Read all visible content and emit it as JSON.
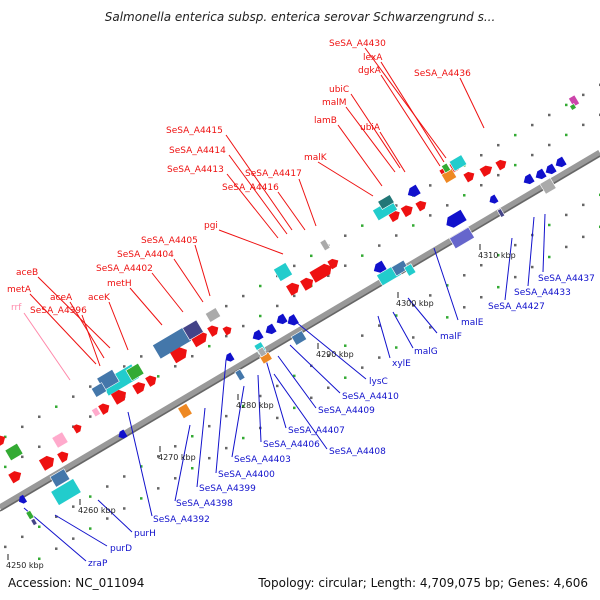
{
  "title": "Salmonella enterica subsp. enterica serovar Schwarzengrund s...",
  "footer": {
    "accession": "Accession: NC_011094",
    "stats": "Topology: circular; Length: 4,709,075 bp; Genes: 4,606"
  },
  "colors": {
    "forward": "#ee1111",
    "reverse": "#1111cc",
    "backbone": "#999999",
    "cyan": "#22cccc",
    "steel": "#4477aa",
    "slate": "#444488",
    "gray": "#aaaaaa",
    "green": "#33aa33",
    "orange": "#ee8822",
    "pink": "#ffaacc",
    "pseudogene": "#ff88aa"
  },
  "kbp_ticks": [
    "4250 kbp",
    "4260 kbp",
    "4270 kbp",
    "4280 kbp",
    "4290 kbp",
    "4300 kbp",
    "4310 kbp"
  ],
  "forward_labels": [
    "SeSA_A4430",
    "lexA",
    "dgkA",
    "SeSA_A4436",
    "ubiC",
    "malM",
    "lamB",
    "ubiA",
    "SeSA_A4415",
    "SeSA_A4414",
    "malK",
    "SeSA_A4413",
    "SeSA_A4417",
    "SeSA_A4416",
    "pgi",
    "SeSA_A4405",
    "SeSA_A4404",
    "SeSA_A4402",
    "aceB",
    "metH",
    "metA",
    "aceA",
    "aceK",
    "SeSA_A4396"
  ],
  "pseudo_labels": [
    "rrf"
  ],
  "reverse_labels": [
    "SeSA_A4437",
    "SeSA_A4433",
    "SeSA_A4427",
    "malE",
    "malF",
    "malG",
    "xylE",
    "lysC",
    "SeSA_A4410",
    "SeSA_A4409",
    "SeSA_A4407",
    "SeSA_A4406",
    "SeSA_A4408",
    "SeSA_A4403",
    "SeSA_A4400",
    "SeSA_A4399",
    "SeSA_A4398",
    "SeSA_A4392",
    "purH",
    "purD",
    "zraP"
  ]
}
